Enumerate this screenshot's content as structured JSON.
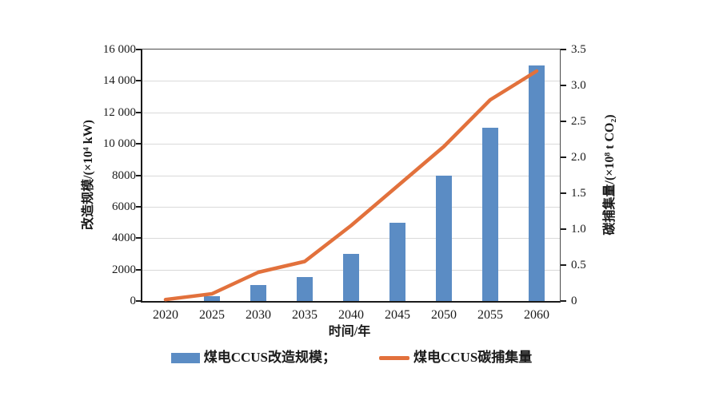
{
  "chart_data": {
    "type": "combo-bar-line",
    "title": "",
    "categories": [
      "2020",
      "2025",
      "2030",
      "2035",
      "2040",
      "2045",
      "2050",
      "2055",
      "2060"
    ],
    "series": [
      {
        "name": "煤电CCUS改造规模",
        "type": "bar",
        "axis": "left",
        "color": "#5b8cc4",
        "values": [
          0,
          300,
          1000,
          1500,
          3000,
          5000,
          8000,
          11000,
          15000
        ]
      },
      {
        "name": "煤电CCUS碳捕集量",
        "type": "line",
        "axis": "right",
        "color": "#e2713c",
        "values": [
          0.02,
          0.1,
          0.4,
          0.55,
          1.05,
          1.6,
          2.15,
          2.8,
          3.2
        ]
      }
    ],
    "x_axis": {
      "label": "时间/年",
      "tick_labels": [
        "2020",
        "2025",
        "2030",
        "2035",
        "2040",
        "2045",
        "2050",
        "2055",
        "2060"
      ]
    },
    "left_axis": {
      "label": "改造规模/(×10⁴ kW)",
      "min": 0,
      "max": 16000,
      "step": 2000,
      "tick_labels": [
        "0",
        "2000",
        "4000",
        "6000",
        "8000",
        "10 000",
        "12 000",
        "14 000",
        "16 000"
      ]
    },
    "right_axis": {
      "label": "碳捕集量/(×10⁸ t CO₂)",
      "min": 0,
      "max": 3.5,
      "step": 0.5,
      "tick_labels": [
        "0",
        "0.5",
        "1.0",
        "1.5",
        "2.0",
        "2.5",
        "3.0",
        "3.5"
      ]
    },
    "legend": [
      {
        "label": "煤电CCUS改造规模；",
        "swatch": "bar",
        "color": "#5b8cc4"
      },
      {
        "label": "煤电CCUS碳捕集量",
        "swatch": "line",
        "color": "#e2713c"
      }
    ],
    "grid": {
      "horizontal": true,
      "color": "#d9d9d9",
      "legend_position": "bottom-center"
    }
  }
}
